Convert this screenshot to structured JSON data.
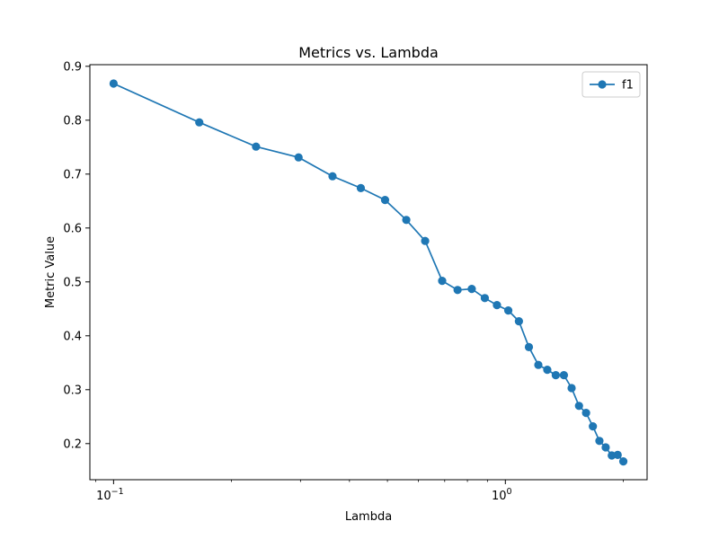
{
  "chart_data": {
    "type": "line",
    "title": "Metrics vs. Lambda",
    "xlabel": "Lambda",
    "ylabel": "Metric Value",
    "xscale": "log",
    "xlim": [
      0.087,
      2.3
    ],
    "ylim": [
      0.133,
      0.903
    ],
    "x_ticks": [
      {
        "value": 0.1,
        "base": "10",
        "exp": "−1"
      },
      {
        "value": 1,
        "base": "10",
        "exp": "0"
      }
    ],
    "y_ticks": [
      {
        "value": 0.2,
        "label": "0.2"
      },
      {
        "value": 0.3,
        "label": "0.3"
      },
      {
        "value": 0.4,
        "label": "0.4"
      },
      {
        "value": 0.5,
        "label": "0.5"
      },
      {
        "value": 0.6,
        "label": "0.6"
      },
      {
        "value": 0.7,
        "label": "0.7"
      },
      {
        "value": 0.8,
        "label": "0.8"
      },
      {
        "value": 0.9,
        "label": "0.9"
      }
    ],
    "grid": false,
    "legend_position": "top-right",
    "series": [
      {
        "name": "f1",
        "color": "#1f77b4",
        "marker": "circle",
        "x": [
          0.1,
          0.1655,
          0.231,
          0.2966,
          0.3621,
          0.4276,
          0.4931,
          0.5586,
          0.6241,
          0.6897,
          0.7552,
          0.8207,
          0.8862,
          0.9517,
          1.0172,
          1.0828,
          1.1483,
          1.2138,
          1.2793,
          1.3448,
          1.4103,
          1.4759,
          1.5414,
          1.6069,
          1.6724,
          1.7379,
          1.8034,
          1.869,
          1.9345,
          2.0
        ],
        "y": [
          0.868,
          0.796,
          0.751,
          0.731,
          0.696,
          0.674,
          0.652,
          0.615,
          0.576,
          0.502,
          0.485,
          0.487,
          0.47,
          0.457,
          0.447,
          0.427,
          0.379,
          0.346,
          0.337,
          0.327,
          0.327,
          0.303,
          0.27,
          0.257,
          0.232,
          0.205,
          0.193,
          0.178,
          0.179,
          0.167
        ]
      }
    ]
  }
}
